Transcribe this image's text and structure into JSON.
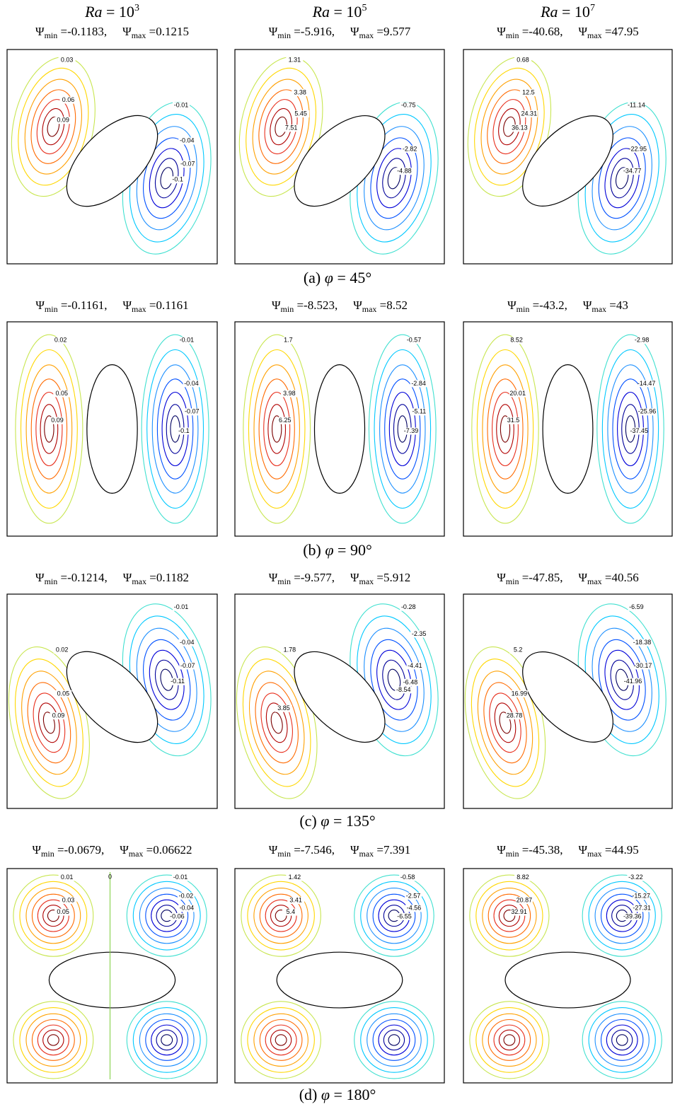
{
  "header": {
    "prefix": "Ra",
    "equals": " = 10",
    "exponents": [
      "3",
      "5",
      "7"
    ]
  },
  "symbol": "Ψ",
  "sub_min": "min",
  "sub_max": "max",
  "rows": [
    {
      "caption": {
        "label": "(a) ",
        "symbol": "φ",
        "value": " = 45°"
      },
      "panels": [
        {
          "min": " =-0.1183,",
          "max": " =0.1215",
          "labels": [
            "0.03",
            "0.06",
            "0.09",
            "-0.01",
            "-0.04",
            "-0.07",
            "-0.1"
          ]
        },
        {
          "min": " =-5.916,",
          "max": " =9.577",
          "labels": [
            "1.31",
            "3.38",
            "5.45",
            "7.51",
            "-0.75",
            "-2.82",
            "-4.88"
          ]
        },
        {
          "min": " =-40.68,",
          "max": " =47.95",
          "labels": [
            "0.68",
            "12.5",
            "24.31",
            "36.13",
            "-11.14",
            "-22.95",
            "-34.77"
          ]
        }
      ]
    },
    {
      "caption": {
        "label": "(b) ",
        "symbol": "φ",
        "value": " = 90°"
      },
      "panels": [
        {
          "min": " =-0.1161,",
          "max": " =0.1161",
          "labels": [
            "0.02",
            "0.05",
            "0.09",
            "-0.01",
            "-0.04",
            "-0.07",
            "-0.1"
          ]
        },
        {
          "min": " =-8.523,",
          "max": " =8.52",
          "labels": [
            "1.7",
            "3.98",
            "6.25",
            "-0.57",
            "-2.84",
            "-5.11",
            "-7.39"
          ]
        },
        {
          "min": " =-43.2,",
          "max": " =43",
          "labels": [
            "8.52",
            "20.01",
            "31.5",
            "-2.98",
            "-14.47",
            "-25.96",
            "-37.45"
          ]
        }
      ]
    },
    {
      "caption": {
        "label": "(c) ",
        "symbol": "φ",
        "value": " = 135°"
      },
      "panels": [
        {
          "min": " =-0.1214,",
          "max": " =0.1182",
          "labels": [
            "0.02",
            "0.05",
            "0.09",
            "-0.01",
            "-0.04",
            "-0.07",
            "-0.11"
          ]
        },
        {
          "min": " =-9.577,",
          "max": " =5.912",
          "labels": [
            "1.78",
            "3.85",
            "-0.28",
            "-2.35",
            "-4.41",
            "-6.48",
            "-8.54"
          ]
        },
        {
          "min": " =-47.85,",
          "max": " =40.56",
          "labels": [
            "5.2",
            "16.99",
            "28.78",
            "-6.59",
            "-18.38",
            "-30.17",
            "-41.96"
          ]
        }
      ]
    },
    {
      "caption": {
        "label": "(d) ",
        "symbol": "φ",
        "value": " = 180°"
      },
      "panels": [
        {
          "min": " =-0.0679,",
          "max": " =0.06622",
          "labels": [
            "0.01",
            "0.03",
            "0.05",
            "-0.01",
            "-0.02",
            "-0.04",
            "-0.06",
            "0"
          ]
        },
        {
          "min": " =-7.546,",
          "max": " =7.391",
          "labels": [
            "1.42",
            "3.41",
            "5.4",
            "-0.58",
            "-2.57",
            "-4.56",
            "-6.55"
          ]
        },
        {
          "min": " =-45.38,",
          "max": " =44.95",
          "labels": [
            "8.82",
            "20.87",
            "32.91",
            "-3.22",
            "-15.27",
            "-27.31",
            "-39.36"
          ]
        }
      ]
    }
  ]
}
